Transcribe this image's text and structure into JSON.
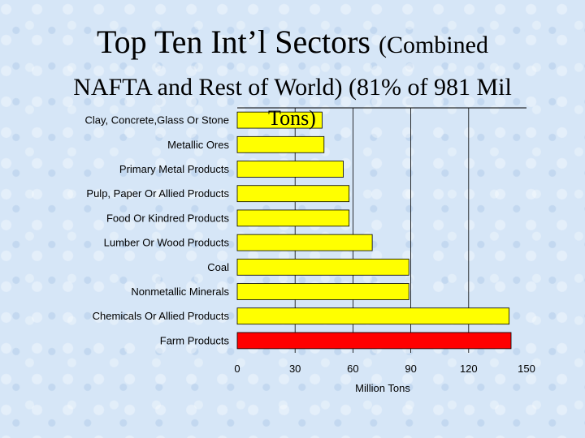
{
  "slide": {
    "title_main": "Top Ten Int’l Sectors",
    "title_paren": "(Combined",
    "title_line2_a": "NAFTA and Rest of World)",
    "title_line2_b": "(81% of 981 Mil",
    "title_line3": "Tons)"
  },
  "chart_data": {
    "type": "bar",
    "orientation": "horizontal",
    "categories": [
      "Clay, Concrete,Glass Or Stone",
      "Metallic Ores",
      "Primary Metal Products",
      "Pulp, Paper Or Allied Products",
      "Food Or Kindred Products",
      "Lumber Or Wood Products",
      "Coal",
      "Nonmetallic Minerals",
      "Chemicals Or Allied Products",
      "Farm Products"
    ],
    "values": [
      44,
      45,
      55,
      58,
      58,
      70,
      89,
      89,
      141,
      142
    ],
    "bar_colors": [
      "#ffff00",
      "#ffff00",
      "#ffff00",
      "#ffff00",
      "#ffff00",
      "#ffff00",
      "#ffff00",
      "#ffff00",
      "#ffff00",
      "#ff0000"
    ],
    "xlim": [
      0,
      150
    ],
    "xticks": [
      0,
      30,
      60,
      90,
      120,
      150
    ],
    "xlabel": "Million Tons",
    "ylabel": "",
    "grid": "vertical"
  }
}
